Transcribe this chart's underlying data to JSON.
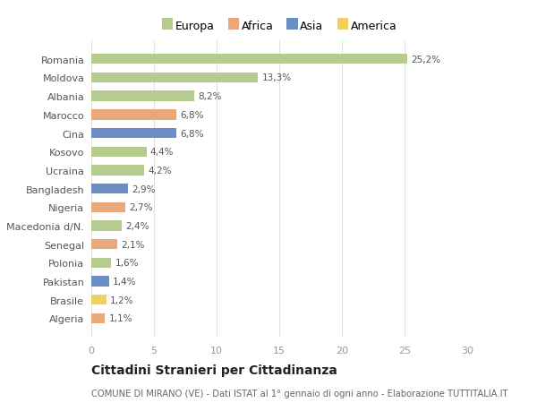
{
  "categories": [
    "Romania",
    "Moldova",
    "Albania",
    "Marocco",
    "Cina",
    "Kosovo",
    "Ucraina",
    "Bangladesh",
    "Nigeria",
    "Macedonia d/N.",
    "Senegal",
    "Polonia",
    "Pakistan",
    "Brasile",
    "Algeria"
  ],
  "values": [
    25.2,
    13.3,
    8.2,
    6.8,
    6.8,
    4.4,
    4.2,
    2.9,
    2.7,
    2.4,
    2.1,
    1.6,
    1.4,
    1.2,
    1.1
  ],
  "labels": [
    "25,2%",
    "13,3%",
    "8,2%",
    "6,8%",
    "6,8%",
    "4,4%",
    "4,2%",
    "2,9%",
    "2,7%",
    "2,4%",
    "2,1%",
    "1,6%",
    "1,4%",
    "1,2%",
    "1,1%"
  ],
  "colors": [
    "#b5cc8e",
    "#b5cc8e",
    "#b5cc8e",
    "#e8a87c",
    "#6b8ec4",
    "#b5cc8e",
    "#b5cc8e",
    "#6b8ec4",
    "#e8a87c",
    "#b5cc8e",
    "#e8a87c",
    "#b5cc8e",
    "#6b8ec4",
    "#f0d060",
    "#e8a87c"
  ],
  "legend_colors": {
    "Europa": "#b5cc8e",
    "Africa": "#e8a87c",
    "Asia": "#6b8ec4",
    "America": "#f0d060"
  },
  "title": "Cittadini Stranieri per Cittadinanza",
  "subtitle": "COMUNE DI MIRANO (VE) - Dati ISTAT al 1° gennaio di ogni anno - Elaborazione TUTTITALIA.IT",
  "xlim": [
    0,
    30
  ],
  "xticks": [
    0,
    5,
    10,
    15,
    20,
    25,
    30
  ],
  "bg_color": "#ffffff",
  "grid_color": "#e0e0e0",
  "label_color": "#555555",
  "tick_color": "#999999"
}
